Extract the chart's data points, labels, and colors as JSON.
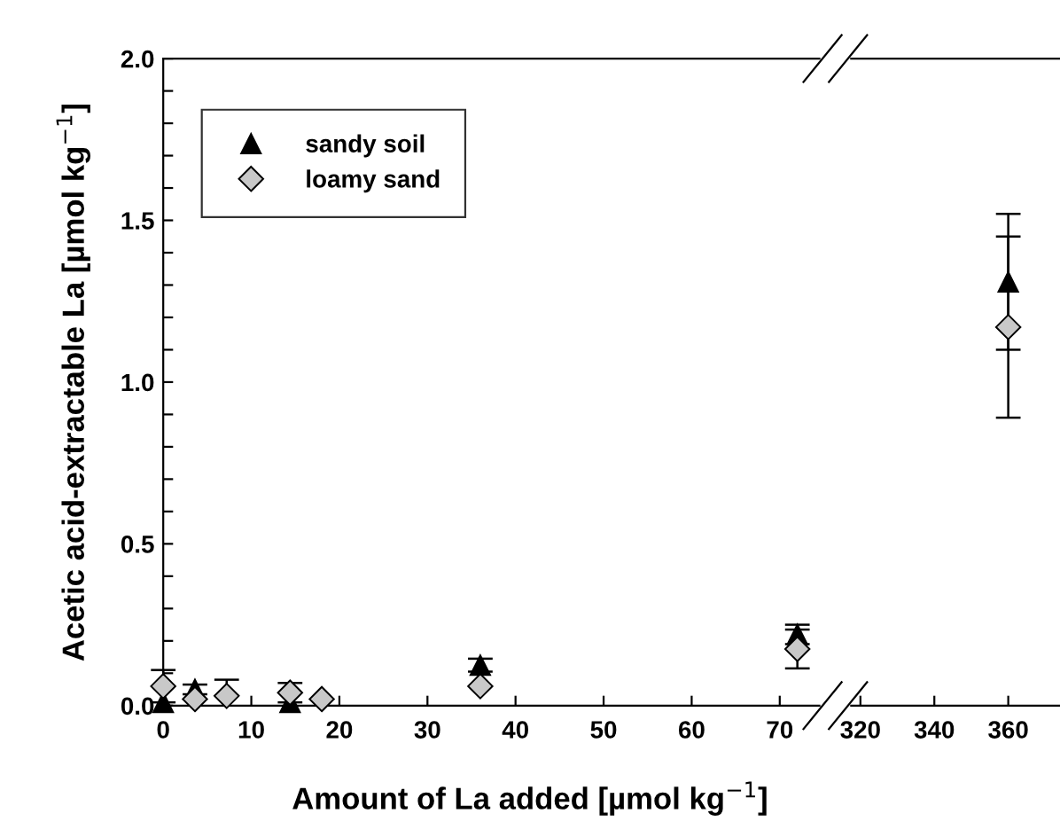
{
  "chart_data": [
    {
      "type": "scatter",
      "xlabel": "Amount of La added [µmol kg$^{−1}$]",
      "ylabel": "Acetic acid-extractable La [µmol kg$^{−1}$]",
      "xlim": [
        0,
        74.5
      ],
      "ylim": [
        0,
        2.0
      ],
      "xticks": [
        0,
        10,
        20,
        30,
        40,
        50,
        60,
        70
      ],
      "yticks": [
        {
          "value": 0,
          "label": "0.0"
        },
        {
          "value": 0.1,
          "label": null
        },
        {
          "value": 0.2,
          "label": null
        },
        {
          "value": 0.3,
          "label": null
        },
        {
          "value": 0.4,
          "label": null
        },
        0.5,
        {
          "value": 0.6,
          "label": null
        },
        {
          "value": 0.7,
          "label": null
        },
        {
          "value": 0.8,
          "label": null
        },
        {
          "value": 0.9,
          "label": null
        },
        {
          "value": 1,
          "label": "1.0"
        },
        {
          "value": 1.1,
          "label": null
        },
        {
          "value": 1.2,
          "label": null
        },
        {
          "value": 1.3,
          "label": null
        },
        {
          "value": 1.4,
          "label": null
        },
        1.5,
        {
          "value": 1.6,
          "label": null
        },
        {
          "value": 1.7,
          "label": null
        },
        {
          "value": 1.8,
          "label": null
        },
        {
          "value": 1.9,
          "label": null
        },
        {
          "value": 2,
          "label": "2.0"
        }
      ],
      "grid": false,
      "legend": "top left",
      "series": [
        {
          "name": "sandy soil",
          "color": "#000000",
          "marker": "triangle",
          "x": [
            0,
            3.6,
            14.4,
            36,
            72
          ],
          "values": [
            0.01,
            0.05,
            0.01,
            0.125,
            0.22
          ],
          "errors": [
            null,
            0.015,
            null,
            0.02,
            0.03
          ]
        },
        {
          "name": "loamy sand",
          "color": "#c8c8c8",
          "marker": "diamond",
          "x": [
            0,
            3.6,
            7.2,
            14.4,
            18,
            36,
            72
          ],
          "values": [
            0.06,
            0.02,
            0.03,
            0.04,
            0.02,
            0.06,
            0.175
          ],
          "errors": [
            0.05,
            null,
            [
              0.03,
              0.08
            ],
            0.03,
            null,
            null,
            0.06
          ]
        }
      ]
    },
    {
      "type": "scatter",
      "xlim": [
        317.5,
        374
      ],
      "ylim": [
        0,
        2.0
      ],
      "xticks": [
        320,
        340,
        360
      ],
      "tick_labels": "x",
      "grid": false,
      "series": [
        {
          "color": "#000000",
          "marker": "triangle",
          "x": [
            360
          ],
          "values": [
            1.31
          ],
          "errors": [
            0.21
          ]
        },
        {
          "color": "#c8c8c8",
          "marker": "diamond",
          "x": [
            360
          ],
          "values": [
            1.17
          ],
          "errors": [
            0.28
          ]
        }
      ]
    }
  ]
}
